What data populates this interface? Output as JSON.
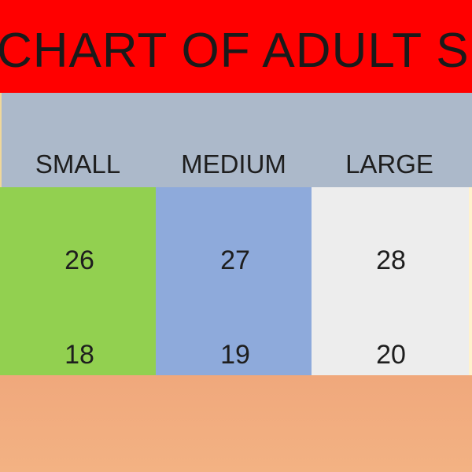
{
  "title": "CHART OF ADULT SH",
  "columns": [
    {
      "label": "SMALL",
      "values": [
        "26",
        "18"
      ],
      "color": "#92d050"
    },
    {
      "label": "MEDIUM",
      "values": [
        "27",
        "19"
      ],
      "color": "#8eaadb"
    },
    {
      "label": "LARGE",
      "values": [
        "28",
        "20"
      ],
      "color": "#ededed"
    }
  ],
  "colors": {
    "title_bg": "#ff0000",
    "header_bg": "#acb9ca",
    "footer_bg": "#f2ae80",
    "edge": "#fff2cc"
  }
}
